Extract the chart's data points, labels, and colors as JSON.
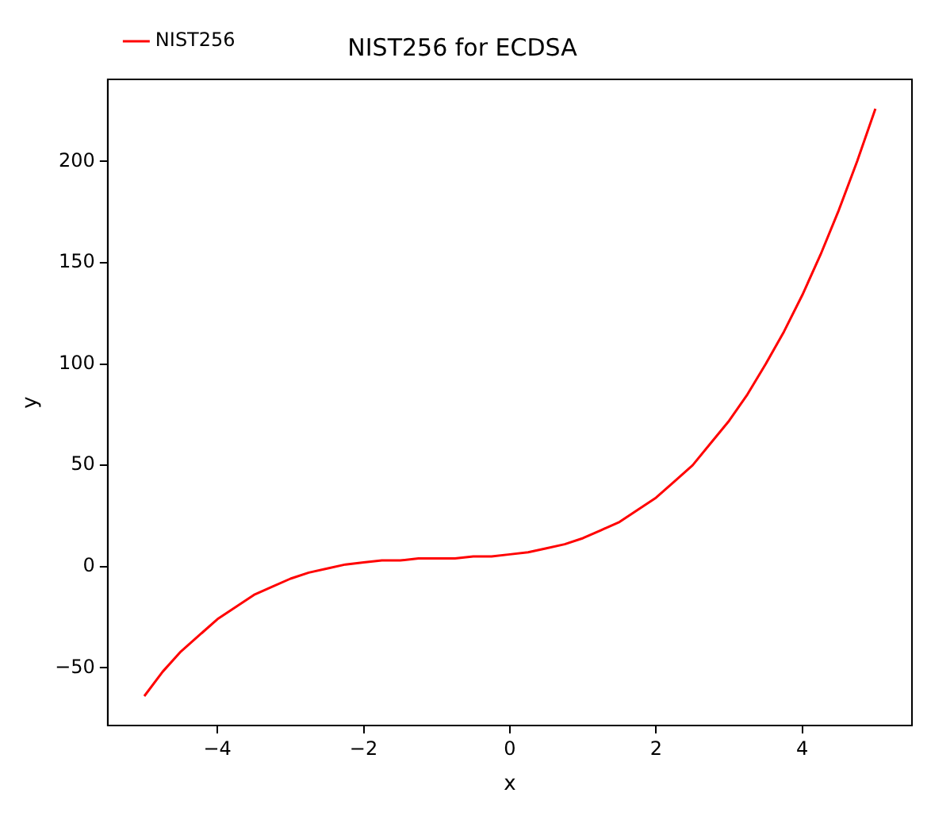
{
  "chart_data": {
    "type": "line",
    "title": "NIST256 for ECDSA",
    "xlabel": "x",
    "ylabel": "y",
    "legend": "top left",
    "marker": "none",
    "line_style": "solid",
    "xlim": [
      -5.5,
      5.5
    ],
    "xticks": [
      -4,
      -2,
      0,
      2,
      4
    ],
    "ylim": [
      -78.5,
      240.5
    ],
    "yticks": [
      -50,
      0,
      50,
      100,
      150,
      200
    ],
    "x": [
      -5,
      -4.75,
      -4.5,
      -4.25,
      -4,
      -3.75,
      -3.5,
      -3.25,
      -3,
      -2.75,
      -2.5,
      -2.25,
      -2,
      -1.75,
      -1.5,
      -1.25,
      -1,
      -0.75,
      -0.5,
      -0.25,
      0,
      0.25,
      0.5,
      0.75,
      1,
      1.25,
      1.5,
      1.75,
      2,
      2.25,
      2.5,
      2.75,
      3,
      3.25,
      3.5,
      3.75,
      4,
      4.25,
      4.5,
      4.75,
      5
    ],
    "series": [
      {
        "name": "NIST256",
        "color": "#ff0000",
        "values": [
          -64,
          -52,
          -42,
          -34,
          -26,
          -20,
          -14,
          -10,
          -6,
          -3,
          -1,
          1,
          2,
          3,
          3,
          4,
          4,
          4,
          5,
          5,
          6,
          7,
          9,
          11,
          14,
          18,
          22,
          28,
          34,
          42,
          50,
          61,
          72,
          85,
          100,
          116,
          134,
          154,
          176,
          200,
          226
        ]
      }
    ]
  }
}
